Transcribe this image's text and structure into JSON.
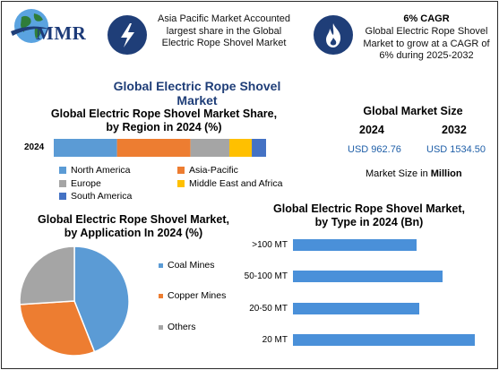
{
  "header": {
    "logo_text": "MMR",
    "blurb1": "Asia Pacific Market Accounted largest share in the Global Electric Rope Shovel Market",
    "cagr_title": "6% CAGR",
    "blurb2": "Global Electric Rope Shovel Market to grow at a CAGR of 6% during 2025-2032",
    "icon1": "lightning-bolt-icon",
    "icon2": "flame-icon"
  },
  "main_title": "Global Electric Rope Shovel Market",
  "market_size": {
    "title": "Global Market Size",
    "year1": "2024",
    "year2": "2032",
    "value1": "USD 962.76",
    "value2": "USD 1534.50",
    "unit_prefix": "Market Size in ",
    "unit": "Million"
  },
  "colors": {
    "north_america": "#5b9bd5",
    "asia_pacific": "#ed7d31",
    "europe": "#a5a5a5",
    "mea": "#ffc000",
    "south_america": "#4472c4",
    "accent": "#1f3e78"
  },
  "chart_data": [
    {
      "type": "bar",
      "orientation": "horizontal-stacked",
      "title": "Global Electric Rope Shovel Market Share, by Region in 2024 (%)",
      "categories": [
        "2024"
      ],
      "series": [
        {
          "name": "North America",
          "values": [
            31
          ]
        },
        {
          "name": "Asia-Pacific",
          "values": [
            36
          ]
        },
        {
          "name": "Europe",
          "values": [
            19
          ]
        },
        {
          "name": "Middle East and Africa",
          "values": [
            11
          ]
        },
        {
          "name": "South America",
          "values": [
            7
          ]
        }
      ],
      "legend": "bottom"
    },
    {
      "type": "pie",
      "title": "Global Electric Rope Shovel Market, by Application In 2024 (%)",
      "labels": [
        "Coal Mines",
        "Copper Mines",
        "Others"
      ],
      "values": [
        44,
        30,
        26
      ],
      "colors": [
        "#5b9bd5",
        "#ed7d31",
        "#a5a5a5"
      ],
      "legend": "right"
    },
    {
      "type": "bar",
      "orientation": "horizontal",
      "title": "Global Electric Rope Shovel Market, by Type in 2024 (Bn)",
      "categories": [
        ">100 MT",
        "50-100 MT",
        "20-50 MT",
        "20 MT"
      ],
      "values": [
        150,
        181,
        153,
        221
      ],
      "xlim": [
        0,
        250
      ]
    }
  ]
}
